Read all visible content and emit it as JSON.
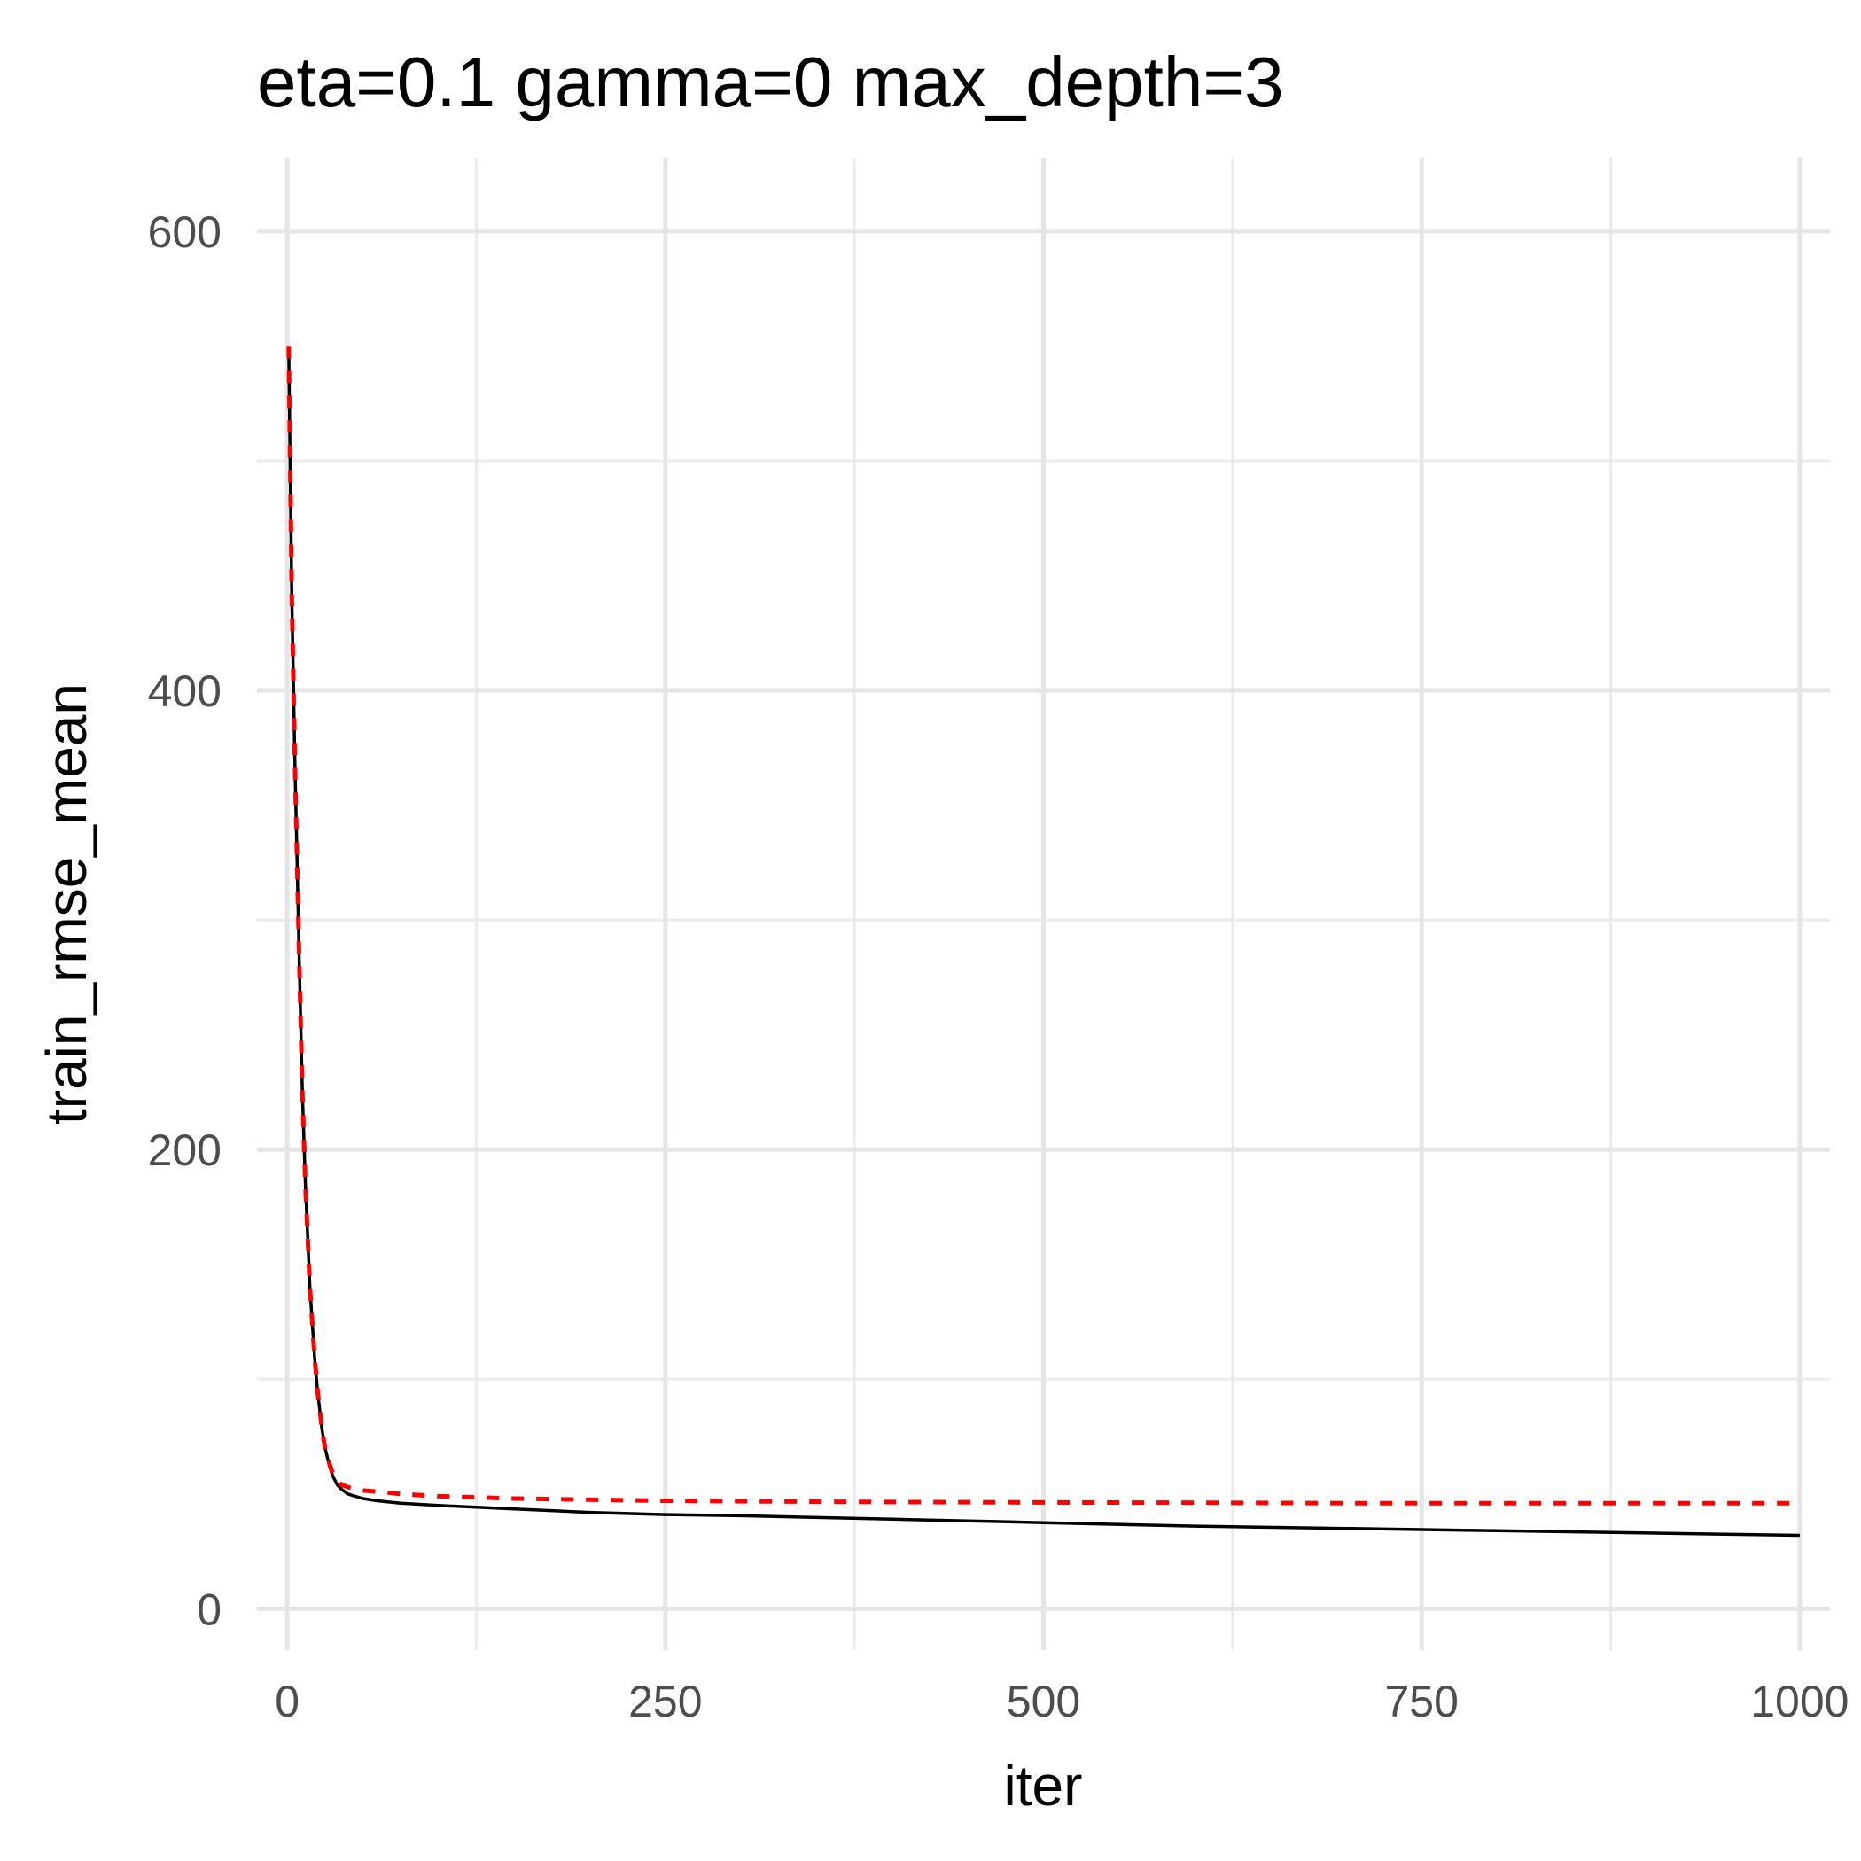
{
  "chart_data": {
    "type": "line",
    "title": "eta=0.1 gamma=0 max_depth=3",
    "xlabel": "iter",
    "ylabel": "train_rmse_mean",
    "xlim": [
      -20,
      1020
    ],
    "ylim": [
      -18,
      632
    ],
    "x_ticks": [
      0,
      250,
      500,
      750,
      1000
    ],
    "x_tick_labels": [
      "0",
      "250",
      "500",
      "750",
      "1000"
    ],
    "y_ticks": [
      0,
      200,
      400,
      600
    ],
    "y_tick_labels": [
      "0",
      "200",
      "400",
      "600"
    ],
    "x_minor_ticks": [
      125,
      375,
      625,
      875
    ],
    "y_minor_ticks": [
      100,
      300,
      500
    ],
    "grid": true,
    "series": [
      {
        "line_style": "solid",
        "color": "#000000",
        "x": [
          1,
          3,
          5,
          8,
          10,
          12,
          15,
          18,
          20,
          23,
          25,
          28,
          30,
          33,
          36,
          40,
          45,
          50,
          60,
          75,
          100,
          150,
          200,
          250,
          300,
          400,
          500,
          600,
          700,
          800,
          900,
          1000
        ],
        "y": [
          550,
          440,
          370,
          280,
          225,
          185,
          140,
          110,
          95,
          78,
          70,
          62,
          58,
          54,
          52,
          50,
          49,
          48,
          47,
          46,
          45,
          43.5,
          42,
          41,
          40.5,
          39,
          37.5,
          36,
          35,
          34,
          33,
          32
        ]
      },
      {
        "line_style": "dashed",
        "color": "#ff0000",
        "x": [
          1,
          3,
          5,
          8,
          10,
          12,
          15,
          18,
          20,
          23,
          25,
          28,
          30,
          33,
          36,
          40,
          45,
          50,
          60,
          75,
          100,
          150,
          200,
          250,
          300,
          400,
          500,
          600,
          700,
          800,
          900,
          1000
        ],
        "y": [
          550,
          440,
          370,
          280,
          225,
          185,
          140,
          110,
          95,
          78,
          70,
          63,
          59,
          56,
          54,
          53,
          52,
          51.5,
          51,
          50,
          49,
          48,
          47.5,
          47,
          46.8,
          46.5,
          46.3,
          46.2,
          46,
          46,
          46,
          46
        ]
      }
    ]
  }
}
